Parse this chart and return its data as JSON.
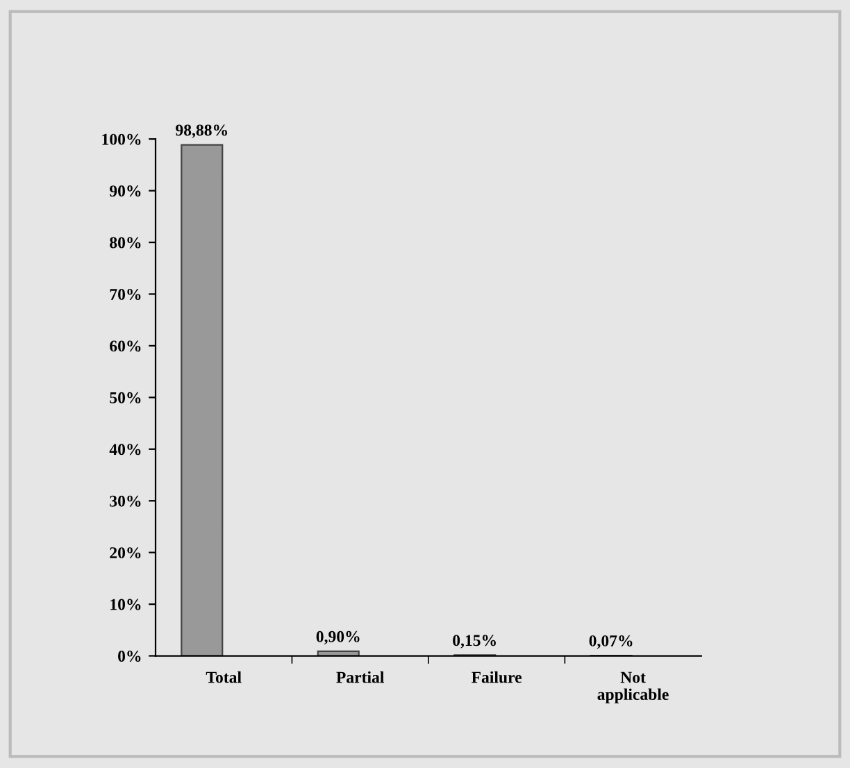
{
  "chart_data": {
    "type": "bar",
    "categories": [
      "Total",
      "Partial",
      "Failure",
      "Not\napplicable"
    ],
    "values": [
      98.88,
      0.9,
      0.15,
      0.07
    ],
    "value_labels": [
      "98,88%",
      "0,90%",
      "0,15%",
      "0,07%"
    ],
    "color": "#999999",
    "ylim": [
      0,
      100
    ],
    "yticks": [
      {
        "value": 0,
        "label": "0%"
      },
      {
        "value": 10,
        "label": "10%"
      },
      {
        "value": 20,
        "label": "20%"
      },
      {
        "value": 30,
        "label": "30%"
      },
      {
        "value": 40,
        "label": "40%"
      },
      {
        "value": 50,
        "label": "50%"
      },
      {
        "value": 60,
        "label": "60%"
      },
      {
        "value": 70,
        "label": "70%"
      },
      {
        "value": 80,
        "label": "80%"
      },
      {
        "value": 90,
        "label": "90%"
      },
      {
        "value": 100,
        "label": "100%"
      }
    ],
    "grid": false,
    "legend": false
  }
}
